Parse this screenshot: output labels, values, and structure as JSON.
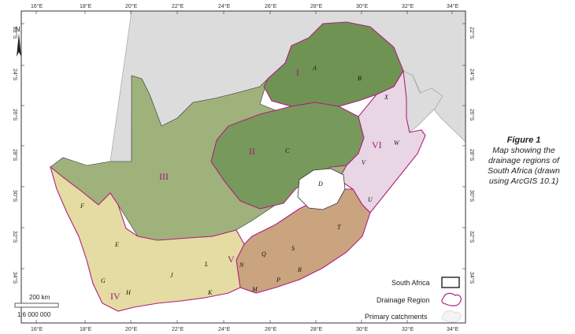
{
  "colors": {
    "neighbour": "#dcdcdc",
    "sea": "#ffffff",
    "drainage_border": "#b0207e",
    "region_I": "#6f9353",
    "region_II": "#77995b",
    "region_III": "#9fb27c",
    "region_IV": "#e4dca2",
    "region_V": "#caa37f",
    "region_VI": "#e8d6e4",
    "lesotho": "#ffffff",
    "swaziland": "#ffffff"
  },
  "grid": {
    "top_labels": [
      "16°E",
      "18°E",
      "20°E",
      "22°E",
      "24°E",
      "26°E",
      "28°E",
      "30°E",
      "32°E",
      "34°E"
    ],
    "bottom_labels": [
      "16°E",
      "18°E",
      "20°E",
      "22°E",
      "24°E",
      "26°E",
      "28°E",
      "30°E",
      "32°E",
      "34°E"
    ],
    "left_labels": [
      "22°S",
      "24°S",
      "26°S",
      "28°S",
      "30°S",
      "32°S",
      "34°S"
    ],
    "right_labels": [
      "22°S",
      "24°S",
      "26°S",
      "28°S",
      "30°S",
      "32°S",
      "34°S"
    ]
  },
  "north_arrow": {
    "label": "N",
    "icon": "north-arrow-icon"
  },
  "drainage_regions": [
    "I",
    "II",
    "III",
    "IV",
    "V",
    "VI"
  ],
  "catchments": [
    "A",
    "B",
    "C",
    "D",
    "E",
    "F",
    "G",
    "H",
    "J",
    "K",
    "L",
    "M",
    "N",
    "P",
    "Q",
    "R",
    "S",
    "T",
    "U",
    "V",
    "W",
    "X"
  ],
  "legend": {
    "items": [
      {
        "label": "South Africa",
        "symbol": "black-outline-box"
      },
      {
        "label": "Drainage Region",
        "symbol": "magenta-outline-blob"
      },
      {
        "label": "Primary catchments",
        "symbol": "faint-grey-blob"
      }
    ]
  },
  "scale": {
    "distance": "200 km",
    "ratio": "1:6 000 000"
  },
  "caption": {
    "title": "Figure 1",
    "lines": [
      "Map showing the",
      "drainage regions of",
      "South Africa (drawn",
      "using ArcGIS 10.1)"
    ]
  }
}
